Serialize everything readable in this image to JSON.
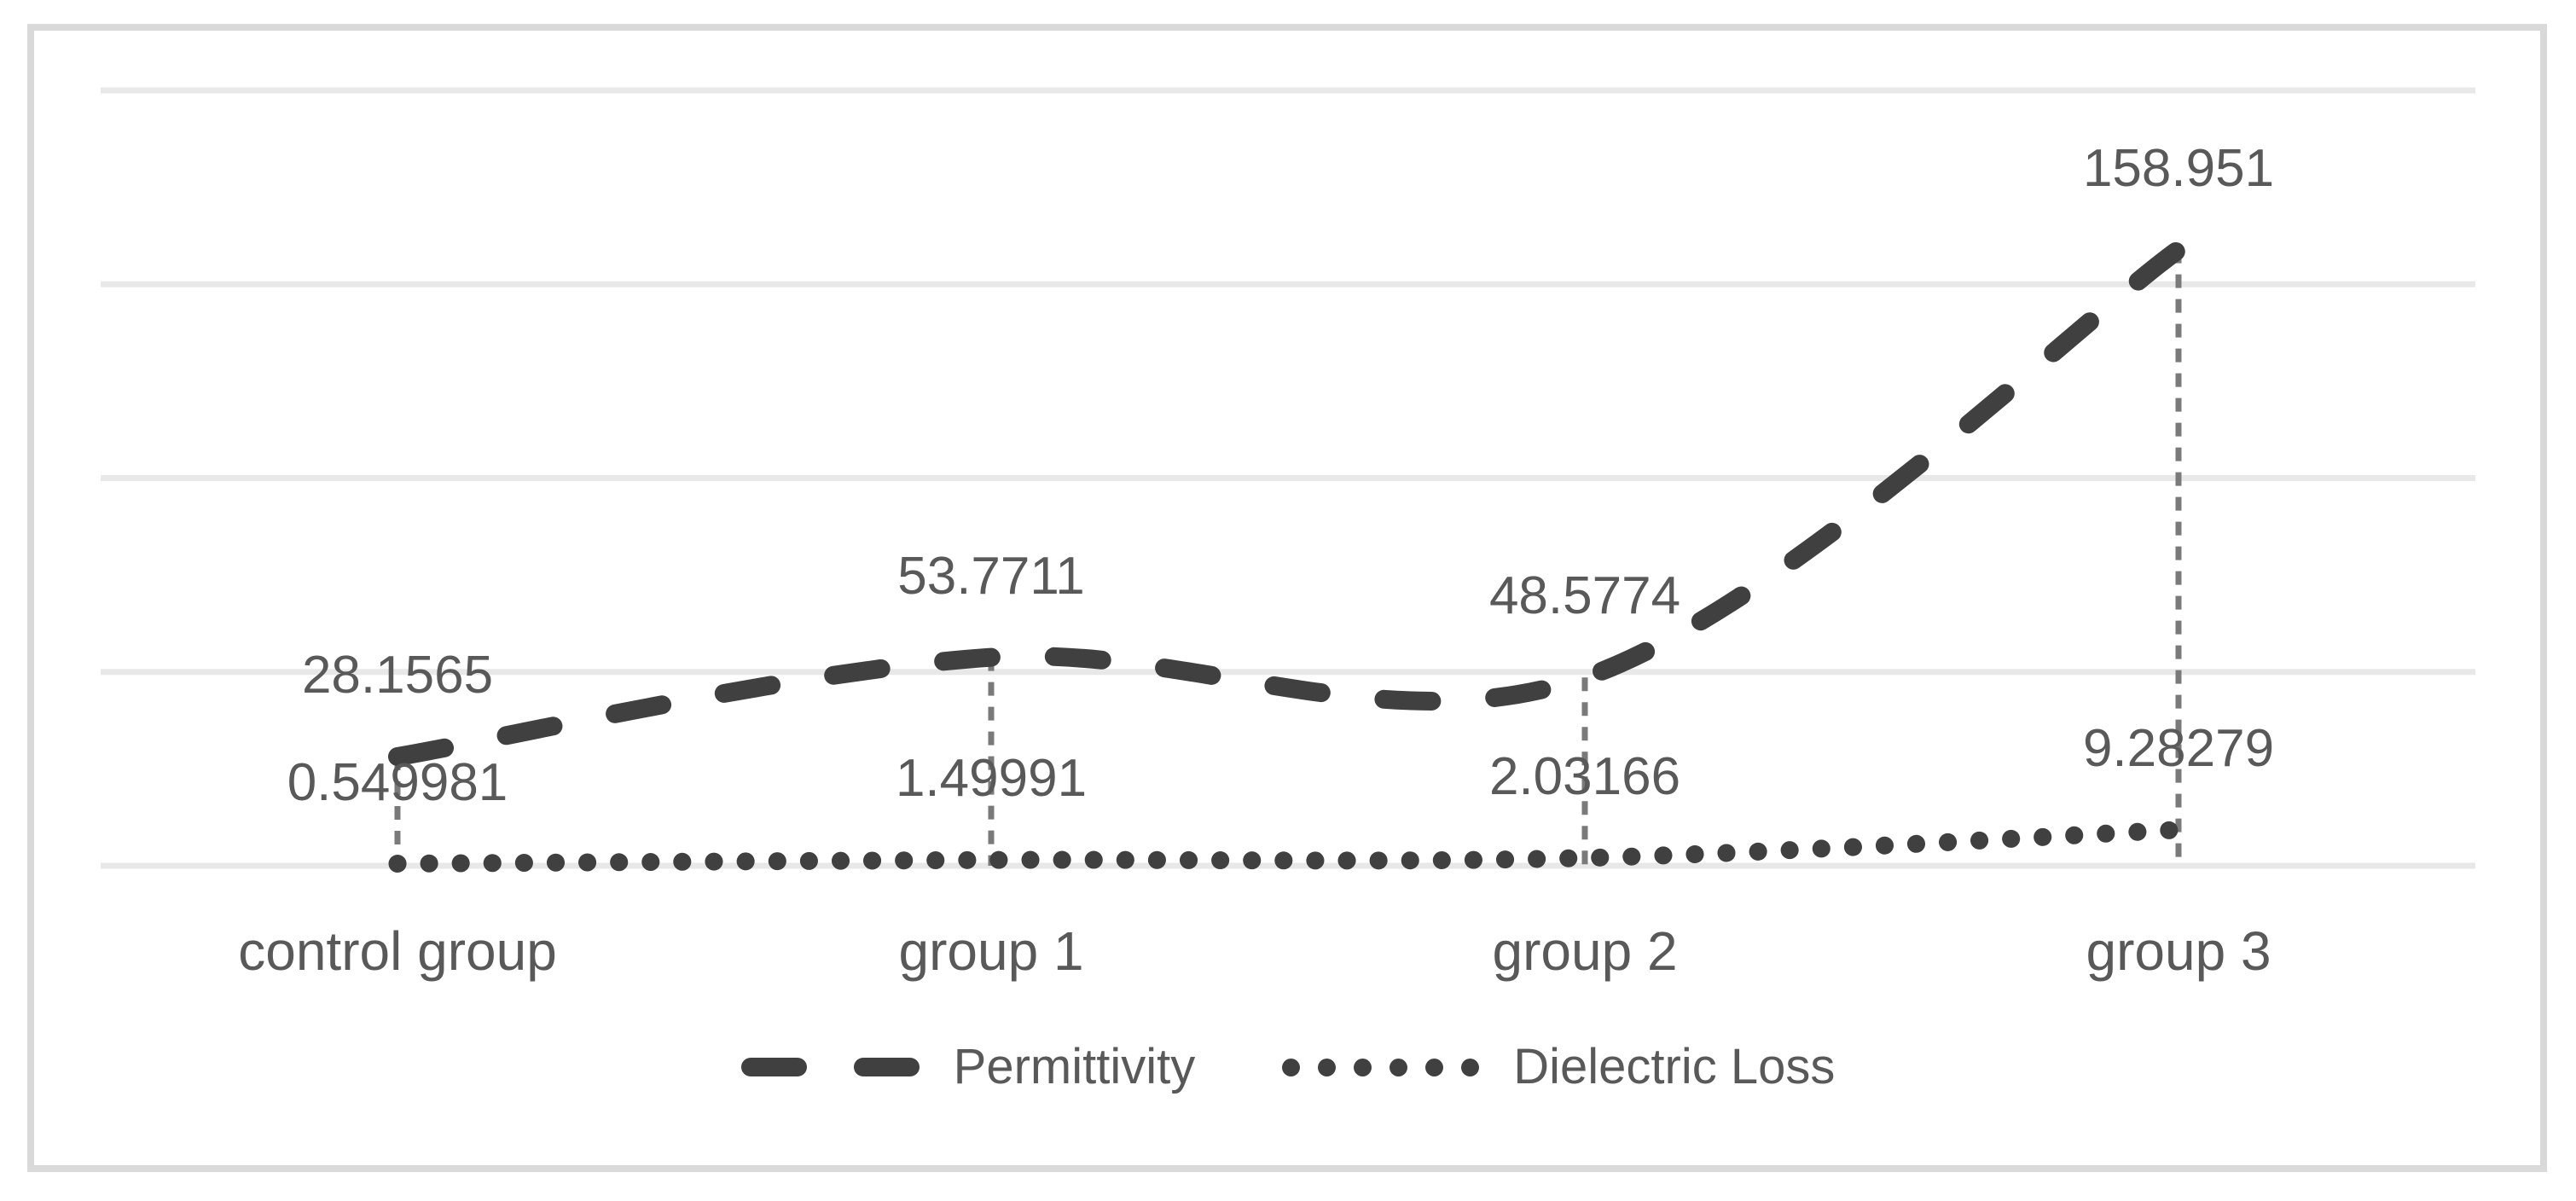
{
  "chart_data": {
    "type": "line",
    "categories": [
      "control group",
      "group 1",
      "group 2",
      "group 3"
    ],
    "series": [
      {
        "name": "Permittivity",
        "style": "dashed",
        "values": [
          28.1565,
          53.7711,
          48.5774,
          158.951
        ],
        "labels": [
          "28.1565",
          "53.7711",
          "48.5774",
          "158.951"
        ]
      },
      {
        "name": "Dielectric Loss",
        "style": "dotted",
        "values": [
          0.549981,
          1.49991,
          2.03166,
          9.28279
        ],
        "labels": [
          "0.549981",
          "1.49991",
          "2.03166",
          "9.28279"
        ]
      }
    ],
    "ylim": [
      0,
      200
    ],
    "gridline_step": 50,
    "grid_on": true,
    "y_axis_tick_labels_visible": false,
    "drop_lines": true,
    "smooth_lines": true,
    "legend_position": "bottom",
    "colors": {
      "series_line": "#404040",
      "label_text": "#595959",
      "gridline": "#e8e8e8",
      "chart_border": "#d9d9d9",
      "drop_line": "#7a7a7a",
      "background": "#ffffff"
    }
  }
}
